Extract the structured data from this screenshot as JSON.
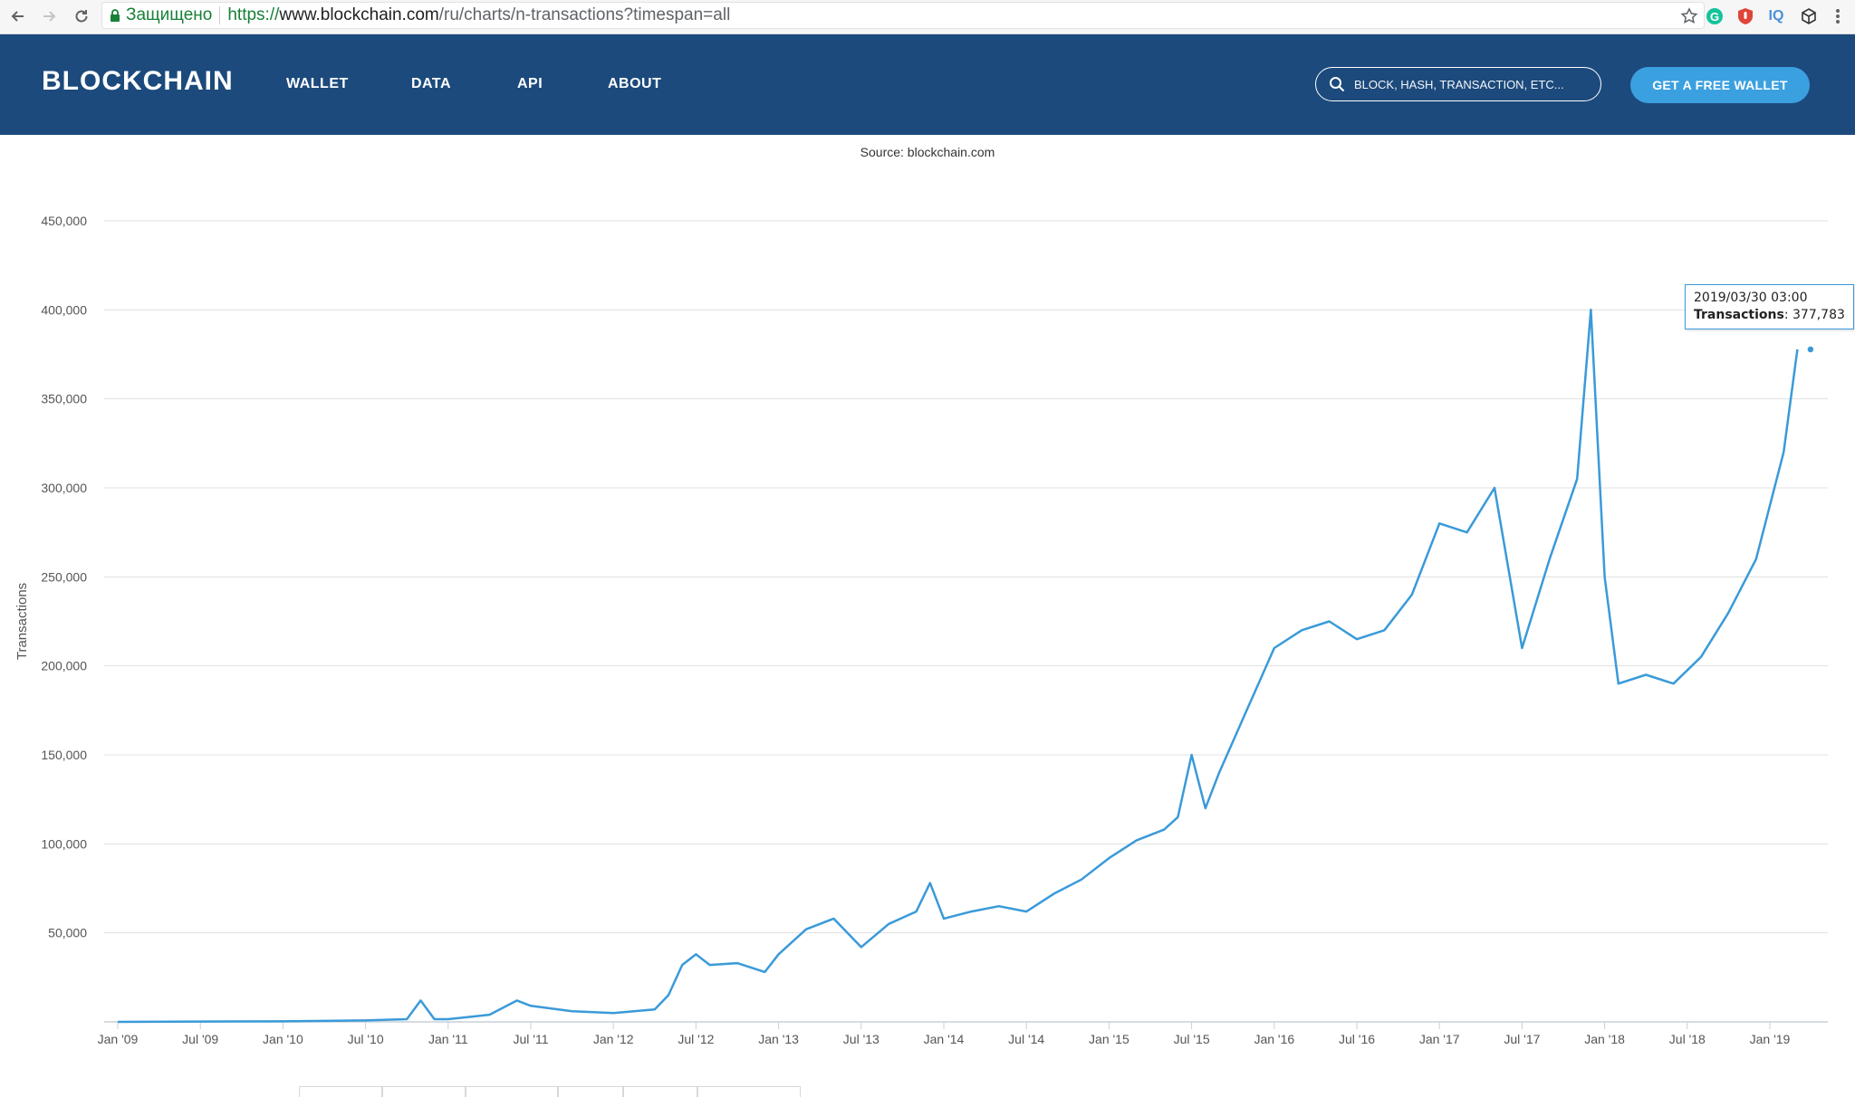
{
  "browser": {
    "secure_label": "Защищено",
    "url_scheme": "https://",
    "url_host": "www.blockchain.com",
    "url_path": "/ru/charts/n-transactions?timespan=all",
    "extensions": [
      "G",
      "IQ"
    ]
  },
  "header": {
    "logo": "BLOCKCHAIN",
    "nav": [
      "WALLET",
      "DATA",
      "API",
      "ABOUT"
    ],
    "search_placeholder": "BLOCK, HASH, TRANSACTION, ETC...",
    "cta": "GET A FREE WALLET",
    "bg_color": "#1c4a7c",
    "cta_color": "#3aa0e0"
  },
  "chart": {
    "source": "Source: blockchain.com",
    "tooltip": {
      "date": "2019/03/30 03:00",
      "label": "Transactions",
      "value": "377,783"
    }
  },
  "chart_data": {
    "type": "line",
    "title": "",
    "subtitle": "Source: blockchain.com",
    "xlabel": "",
    "ylabel": "Transactions",
    "ylim": [
      0,
      450000
    ],
    "y_ticks": [
      "50,000",
      "100,000",
      "150,000",
      "200,000",
      "250,000",
      "300,000",
      "350,000",
      "400,000",
      "450,000"
    ],
    "x_ticks": [
      "Jan '09",
      "Jul '09",
      "Jan '10",
      "Jul '10",
      "Jan '11",
      "Jul '11",
      "Jan '12",
      "Jul '12",
      "Jan '13",
      "Jul '13",
      "Jan '14",
      "Jul '14",
      "Jan '15",
      "Jul '15",
      "Jan '16",
      "Jul '16",
      "Jan '17",
      "Jul '17",
      "Jan '18",
      "Jul '18",
      "Jan '19"
    ],
    "series_color": "#3a9ad9",
    "series": [
      {
        "name": "Transactions",
        "points": [
          [
            "2009-01",
            0
          ],
          [
            "2009-07",
            200
          ],
          [
            "2010-01",
            300
          ],
          [
            "2010-07",
            800
          ],
          [
            "2010-10",
            1500
          ],
          [
            "2010-11",
            12000
          ],
          [
            "2010-12",
            1500
          ],
          [
            "2011-01",
            1500
          ],
          [
            "2011-04",
            4000
          ],
          [
            "2011-06",
            12000
          ],
          [
            "2011-07",
            9000
          ],
          [
            "2011-10",
            6000
          ],
          [
            "2012-01",
            5000
          ],
          [
            "2012-04",
            7000
          ],
          [
            "2012-05",
            15000
          ],
          [
            "2012-06",
            32000
          ],
          [
            "2012-07",
            38000
          ],
          [
            "2012-08",
            32000
          ],
          [
            "2012-10",
            33000
          ],
          [
            "2012-12",
            28000
          ],
          [
            "2013-01",
            38000
          ],
          [
            "2013-03",
            52000
          ],
          [
            "2013-05",
            58000
          ],
          [
            "2013-07",
            42000
          ],
          [
            "2013-09",
            55000
          ],
          [
            "2013-11",
            62000
          ],
          [
            "2013-12",
            78000
          ],
          [
            "2014-01",
            58000
          ],
          [
            "2014-03",
            62000
          ],
          [
            "2014-05",
            65000
          ],
          [
            "2014-07",
            62000
          ],
          [
            "2014-09",
            72000
          ],
          [
            "2014-11",
            80000
          ],
          [
            "2015-01",
            92000
          ],
          [
            "2015-03",
            102000
          ],
          [
            "2015-05",
            108000
          ],
          [
            "2015-06",
            115000
          ],
          [
            "2015-07",
            150000
          ],
          [
            "2015-08",
            120000
          ],
          [
            "2015-09",
            140000
          ],
          [
            "2015-11",
            175000
          ],
          [
            "2016-01",
            210000
          ],
          [
            "2016-03",
            220000
          ],
          [
            "2016-05",
            225000
          ],
          [
            "2016-07",
            215000
          ],
          [
            "2016-09",
            220000
          ],
          [
            "2016-11",
            240000
          ],
          [
            "2017-01",
            280000
          ],
          [
            "2017-03",
            275000
          ],
          [
            "2017-05",
            300000
          ],
          [
            "2017-07",
            210000
          ],
          [
            "2017-09",
            260000
          ],
          [
            "2017-11",
            305000
          ],
          [
            "2017-12",
            400000
          ],
          [
            "2018-01",
            250000
          ],
          [
            "2018-02",
            190000
          ],
          [
            "2018-04",
            195000
          ],
          [
            "2018-06",
            190000
          ],
          [
            "2018-08",
            205000
          ],
          [
            "2018-10",
            230000
          ],
          [
            "2018-12",
            260000
          ],
          [
            "2019-01",
            290000
          ],
          [
            "2019-02",
            320000
          ],
          [
            "2019-03",
            377783
          ]
        ]
      }
    ],
    "highlight": {
      "x": "2019-03-30",
      "y": 377783
    }
  }
}
